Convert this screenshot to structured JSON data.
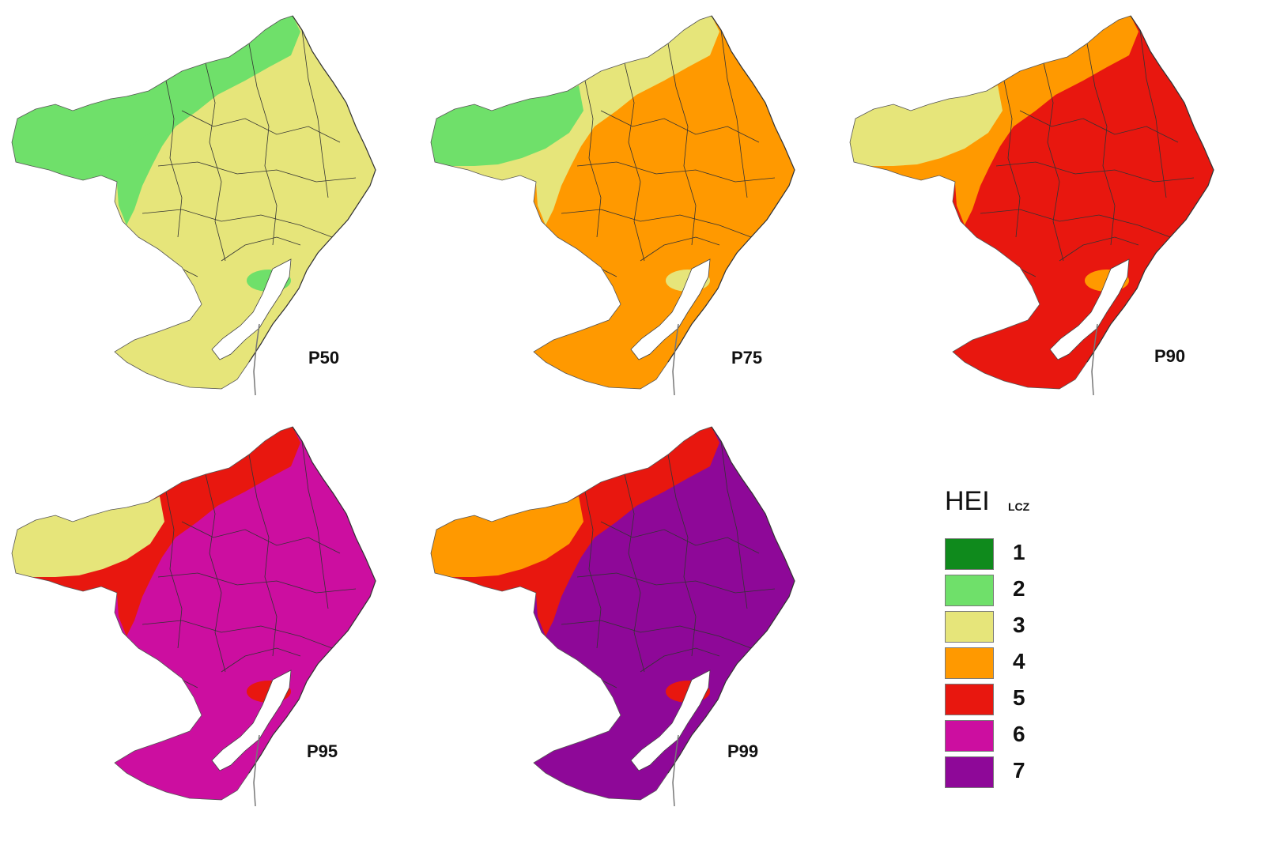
{
  "legend": {
    "title": "HEI",
    "subtitle": "LCZ",
    "items": [
      {
        "level": "1",
        "color": "#0f8a1c"
      },
      {
        "level": "2",
        "color": "#6fe06a"
      },
      {
        "level": "3",
        "color": "#e6e57a"
      },
      {
        "level": "4",
        "color": "#ff9900"
      },
      {
        "level": "5",
        "color": "#e8170f"
      },
      {
        "level": "6",
        "color": "#cc0ea0"
      },
      {
        "level": "7",
        "color": "#8e0898"
      }
    ]
  },
  "panels": [
    {
      "label": "P50",
      "base": "#e6e57a",
      "secondary": "#6fe06a",
      "tertiary": "#6fe06a"
    },
    {
      "label": "P75",
      "base": "#ff9900",
      "secondary": "#e6e57a",
      "tertiary": "#6fe06a"
    },
    {
      "label": "P90",
      "base": "#e8170f",
      "secondary": "#ff9900",
      "tertiary": "#e6e57a"
    },
    {
      "label": "P95",
      "base": "#cc0ea0",
      "secondary": "#e8170f",
      "tertiary": "#e6e57a"
    },
    {
      "label": "P99",
      "base": "#8e0898",
      "secondary": "#e8170f",
      "tertiary": "#ff9900"
    }
  ]
}
